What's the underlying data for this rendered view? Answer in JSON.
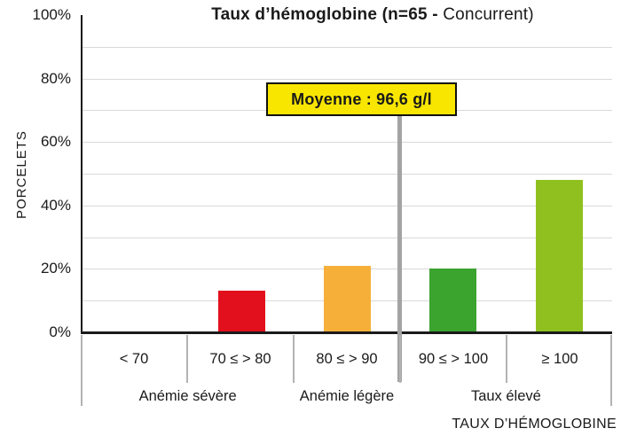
{
  "title": {
    "bold": "Taux d’hémoglobine (n=65 - ",
    "regular": "Concurrent)"
  },
  "y_axis": {
    "label": "PORCELETS"
  },
  "x_axis": {
    "label": "TAUX D’HÉMOGLOBINE"
  },
  "annotation": {
    "text": "Moyenne : 96,6 g/l",
    "box_color": "#f8e600",
    "border_color": "#111111",
    "line_color": "#a3a3a3"
  },
  "chart_data": {
    "type": "bar",
    "title": "Taux d’hémoglobine (n=65 - Concurrent)",
    "xlabel": "TAUX D’HÉMOGLOBINE",
    "ylabel": "PORCELETS",
    "categories": [
      "< 70",
      "70 ≤ > 80",
      "80 ≤ > 90",
      "90 ≤ > 100",
      "≥ 100"
    ],
    "values": [
      0,
      13,
      21,
      20,
      48
    ],
    "bar_colors": [
      null,
      "#e2101c",
      "#f6b03a",
      "#3aa42f",
      "#90c01f"
    ],
    "ylim": [
      0,
      100
    ],
    "ytick_values": [
      0,
      20,
      40,
      60,
      80,
      100
    ],
    "ytick_labels": [
      "0%",
      "20%",
      "40%",
      "60%",
      "80%",
      "100%"
    ],
    "grid_step": 10,
    "grid_on": true,
    "legend": "none",
    "groups": [
      {
        "label": "Anémie sévère",
        "span": [
          0,
          2
        ]
      },
      {
        "label": "Anémie légère",
        "span": [
          2,
          3
        ]
      },
      {
        "label": "Taux élevé",
        "span": [
          3,
          5
        ]
      }
    ],
    "mean_annotation": {
      "text": "Moyenne : 96,6 g/l",
      "x_value": 90,
      "boundary_index": 3
    }
  }
}
